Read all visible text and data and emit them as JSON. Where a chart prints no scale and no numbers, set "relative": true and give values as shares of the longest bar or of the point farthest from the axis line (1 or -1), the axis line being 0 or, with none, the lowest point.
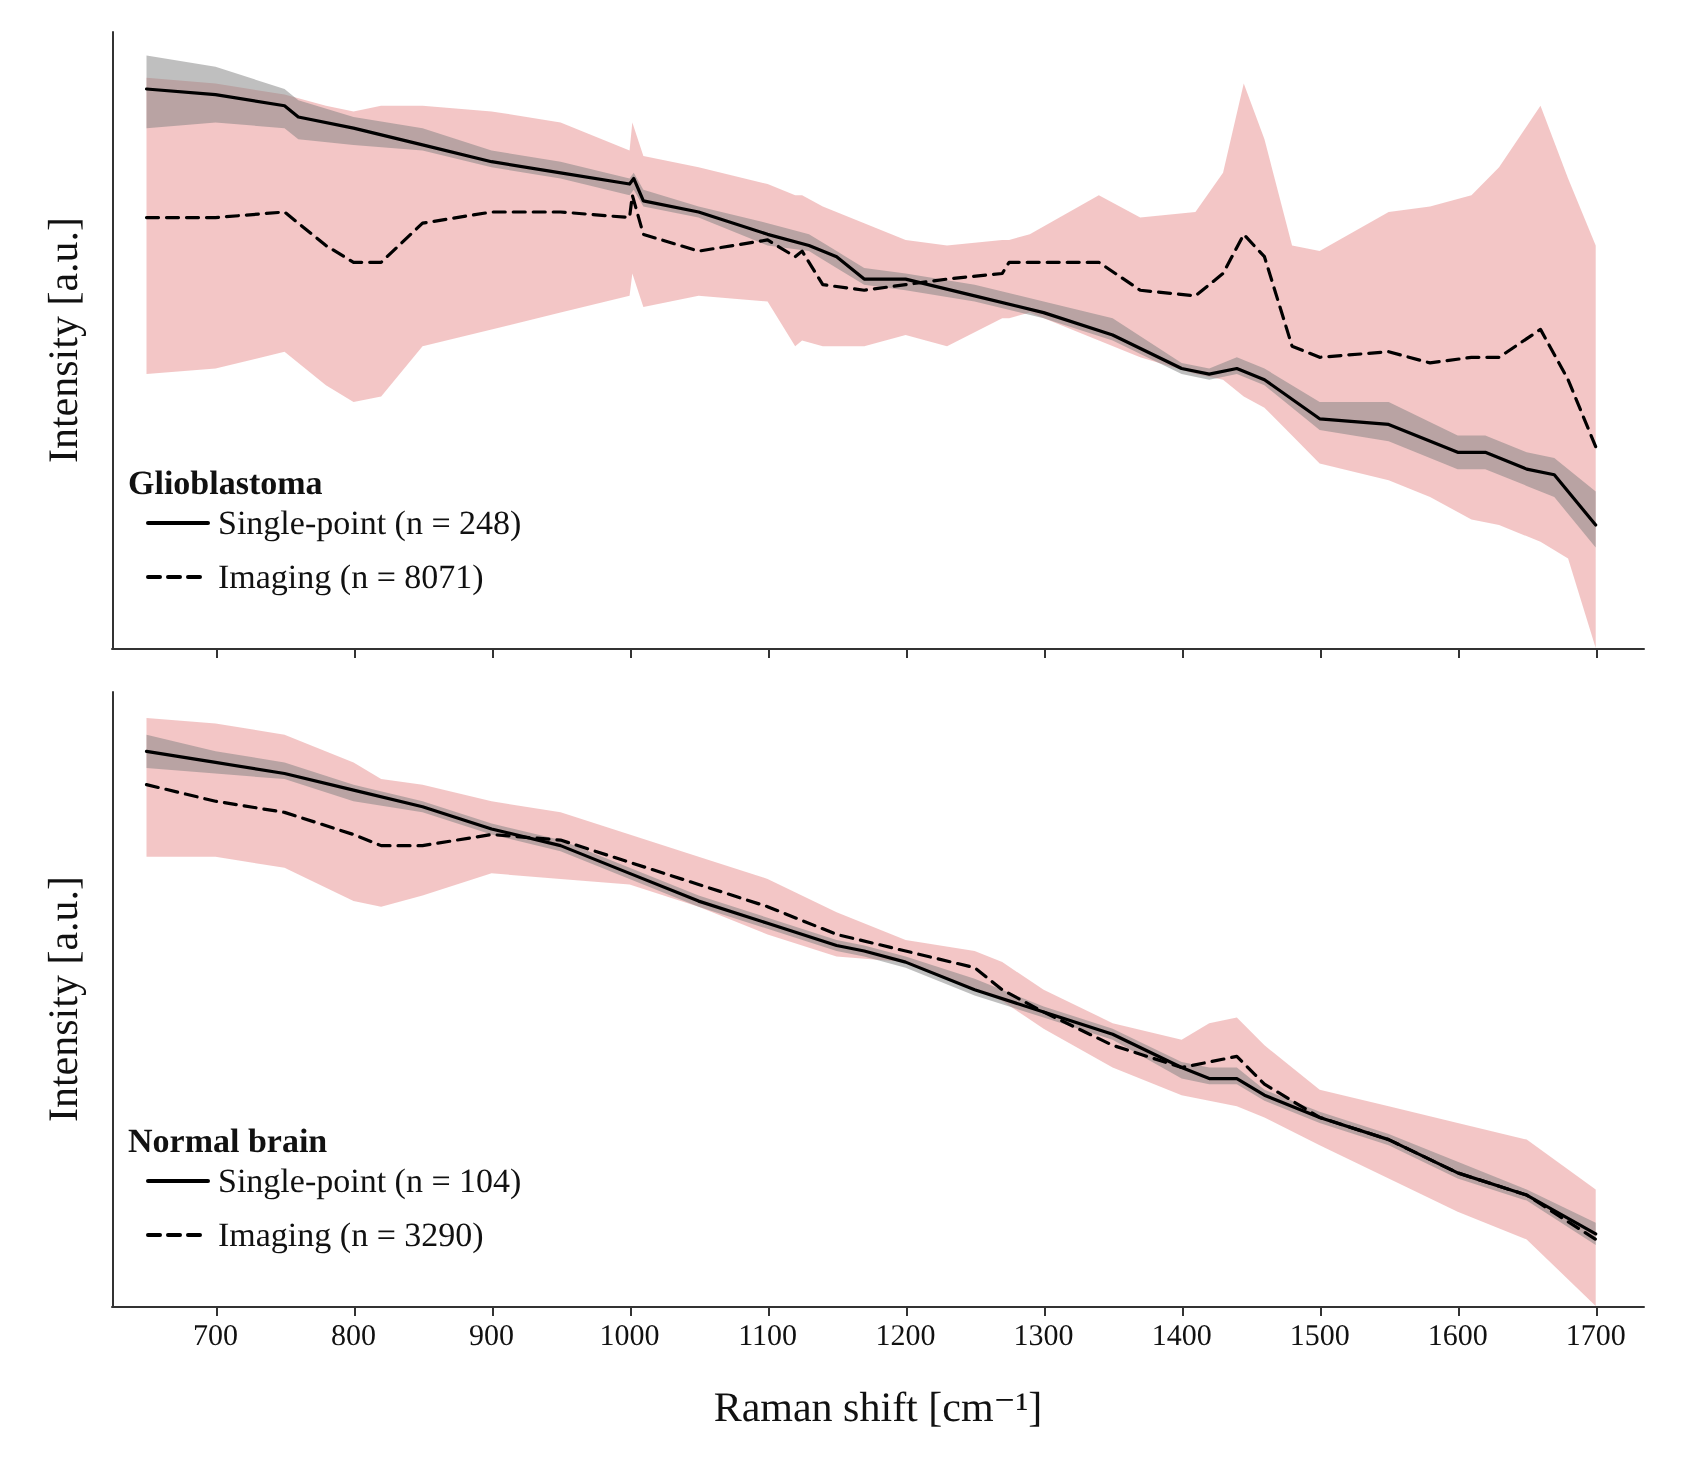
{
  "chart_data": [
    {
      "type": "line",
      "relative": true,
      "xlim": [
        625,
        1735
      ],
      "xticks": [
        {
          "value": 700,
          "label": null
        },
        {
          "value": 800,
          "label": null
        },
        {
          "value": 900,
          "label": null
        },
        {
          "value": 1000,
          "label": null
        },
        {
          "value": 1100,
          "label": null
        },
        {
          "value": 1200,
          "label": null
        },
        {
          "value": 1300,
          "label": null
        },
        {
          "value": 1400,
          "label": null
        },
        {
          "value": 1500,
          "label": null
        },
        {
          "value": 1600,
          "label": null
        },
        {
          "value": 1700,
          "label": null
        }
      ],
      "tick_labels": false,
      "grid": false,
      "ylabel": "Intensity [a.u.]",
      "legend_title": "Glioblastoma",
      "legend": "bottom left",
      "marker": "none",
      "series": [
        {
          "name": "Single-point (n = 248)",
          "color": "#000000",
          "line_style": "solid",
          "x": [
            650,
            700,
            750,
            760,
            800,
            850,
            900,
            950,
            1000,
            1003,
            1010,
            1050,
            1100,
            1130,
            1150,
            1170,
            1200,
            1250,
            1300,
            1350,
            1400,
            1420,
            1440,
            1460,
            1500,
            1550,
            1600,
            1620,
            1650,
            1670,
            1700
          ],
          "values": [
            1.0,
            0.99,
            0.97,
            0.95,
            0.93,
            0.9,
            0.87,
            0.85,
            0.83,
            0.84,
            0.8,
            0.78,
            0.74,
            0.72,
            0.7,
            0.66,
            0.66,
            0.63,
            0.6,
            0.56,
            0.5,
            0.49,
            0.5,
            0.48,
            0.41,
            0.4,
            0.35,
            0.35,
            0.32,
            0.31,
            0.22
          ],
          "upper": [
            1.06,
            1.04,
            1.0,
            0.98,
            0.95,
            0.93,
            0.89,
            0.87,
            0.84,
            0.85,
            0.82,
            0.79,
            0.76,
            0.74,
            0.71,
            0.68,
            0.67,
            0.65,
            0.62,
            0.59,
            0.51,
            0.5,
            0.52,
            0.5,
            0.44,
            0.44,
            0.38,
            0.38,
            0.35,
            0.34,
            0.28
          ],
          "lower": [
            0.93,
            0.94,
            0.93,
            0.91,
            0.9,
            0.89,
            0.86,
            0.84,
            0.81,
            0.82,
            0.79,
            0.77,
            0.72,
            0.71,
            0.68,
            0.65,
            0.64,
            0.62,
            0.59,
            0.55,
            0.49,
            0.48,
            0.49,
            0.47,
            0.39,
            0.37,
            0.32,
            0.32,
            0.29,
            0.27,
            0.18
          ]
        },
        {
          "name": "Imaging (n = 8071)",
          "color": "#000000",
          "line_style": "dashed",
          "x": [
            650,
            700,
            750,
            780,
            800,
            820,
            850,
            900,
            950,
            1000,
            1002,
            1010,
            1050,
            1100,
            1120,
            1125,
            1140,
            1170,
            1200,
            1230,
            1270,
            1275,
            1290,
            1340,
            1370,
            1410,
            1430,
            1445,
            1460,
            1480,
            1500,
            1550,
            1580,
            1610,
            1630,
            1660,
            1680,
            1700
          ],
          "values": [
            0.77,
            0.77,
            0.78,
            0.72,
            0.69,
            0.69,
            0.76,
            0.78,
            0.78,
            0.77,
            0.81,
            0.74,
            0.71,
            0.73,
            0.7,
            0.71,
            0.65,
            0.64,
            0.65,
            0.66,
            0.67,
            0.69,
            0.69,
            0.69,
            0.64,
            0.63,
            0.67,
            0.74,
            0.7,
            0.54,
            0.52,
            0.53,
            0.51,
            0.52,
            0.52,
            0.57,
            0.48,
            0.36
          ],
          "upper": [
            1.02,
            1.01,
            0.99,
            0.97,
            0.96,
            0.97,
            0.97,
            0.96,
            0.94,
            0.89,
            0.94,
            0.88,
            0.86,
            0.83,
            0.81,
            0.81,
            0.79,
            0.76,
            0.73,
            0.72,
            0.73,
            0.73,
            0.74,
            0.81,
            0.77,
            0.78,
            0.85,
            1.01,
            0.91,
            0.72,
            0.71,
            0.78,
            0.79,
            0.81,
            0.86,
            0.97,
            0.84,
            0.72
          ],
          "lower": [
            0.49,
            0.5,
            0.53,
            0.47,
            0.44,
            0.45,
            0.54,
            0.57,
            0.6,
            0.63,
            0.67,
            0.61,
            0.63,
            0.62,
            0.54,
            0.55,
            0.54,
            0.54,
            0.56,
            0.54,
            0.59,
            0.59,
            0.6,
            0.55,
            0.52,
            0.49,
            0.48,
            0.45,
            0.43,
            0.38,
            0.33,
            0.3,
            0.27,
            0.23,
            0.22,
            0.19,
            0.16,
            0.0
          ]
        }
      ]
    },
    {
      "type": "line",
      "relative": true,
      "xlim": [
        625,
        1735
      ],
      "xticks": [
        700,
        800,
        900,
        1000,
        1100,
        1200,
        1300,
        1400,
        1500,
        1600,
        1700
      ],
      "tick_labels": "x",
      "grid": false,
      "xlabel": "Raman shift [cm⁻¹]",
      "ylabel": "Intensity [a.u.]",
      "legend_title": "Normal brain",
      "legend": "bottom left",
      "marker": "none",
      "series": [
        {
          "name": "Single-point (n = 104)",
          "color": "#000000",
          "line_style": "solid",
          "x": [
            650,
            700,
            750,
            800,
            850,
            900,
            950,
            1000,
            1050,
            1100,
            1150,
            1170,
            1200,
            1250,
            1300,
            1350,
            1400,
            1420,
            1440,
            1460,
            1500,
            1550,
            1600,
            1650,
            1700
          ],
          "values": [
            1.0,
            0.98,
            0.96,
            0.93,
            0.9,
            0.86,
            0.83,
            0.78,
            0.73,
            0.69,
            0.65,
            0.64,
            0.62,
            0.57,
            0.53,
            0.49,
            0.43,
            0.41,
            0.41,
            0.38,
            0.34,
            0.3,
            0.24,
            0.2,
            0.13
          ],
          "upper": [
            1.03,
            1.0,
            0.98,
            0.94,
            0.91,
            0.87,
            0.84,
            0.79,
            0.74,
            0.7,
            0.66,
            0.65,
            0.63,
            0.59,
            0.54,
            0.5,
            0.44,
            0.43,
            0.43,
            0.39,
            0.35,
            0.31,
            0.26,
            0.21,
            0.15
          ],
          "lower": [
            0.97,
            0.96,
            0.95,
            0.91,
            0.89,
            0.85,
            0.82,
            0.77,
            0.72,
            0.68,
            0.64,
            0.63,
            0.61,
            0.56,
            0.52,
            0.48,
            0.41,
            0.4,
            0.4,
            0.37,
            0.33,
            0.29,
            0.23,
            0.19,
            0.11
          ]
        },
        {
          "name": "Imaging (n = 3290)",
          "color": "#000000",
          "line_style": "dashed",
          "x": [
            650,
            700,
            750,
            800,
            820,
            850,
            900,
            950,
            1000,
            1050,
            1100,
            1150,
            1200,
            1250,
            1270,
            1300,
            1350,
            1400,
            1420,
            1440,
            1460,
            1500,
            1550,
            1600,
            1650,
            1700
          ],
          "values": [
            0.94,
            0.91,
            0.89,
            0.85,
            0.83,
            0.83,
            0.85,
            0.84,
            0.8,
            0.76,
            0.72,
            0.67,
            0.64,
            0.61,
            0.57,
            0.53,
            0.47,
            0.43,
            0.44,
            0.45,
            0.4,
            0.34,
            0.3,
            0.24,
            0.2,
            0.12
          ],
          "upper": [
            1.06,
            1.05,
            1.03,
            0.98,
            0.95,
            0.94,
            0.91,
            0.89,
            0.85,
            0.81,
            0.77,
            0.71,
            0.66,
            0.64,
            0.62,
            0.57,
            0.51,
            0.48,
            0.51,
            0.52,
            0.47,
            0.39,
            0.36,
            0.33,
            0.3,
            0.21
          ],
          "lower": [
            0.81,
            0.81,
            0.79,
            0.73,
            0.72,
            0.74,
            0.78,
            0.77,
            0.76,
            0.72,
            0.67,
            0.63,
            0.62,
            0.57,
            0.55,
            0.5,
            0.43,
            0.38,
            0.37,
            0.36,
            0.34,
            0.29,
            0.23,
            0.17,
            0.12,
            0.0
          ]
        }
      ]
    }
  ]
}
